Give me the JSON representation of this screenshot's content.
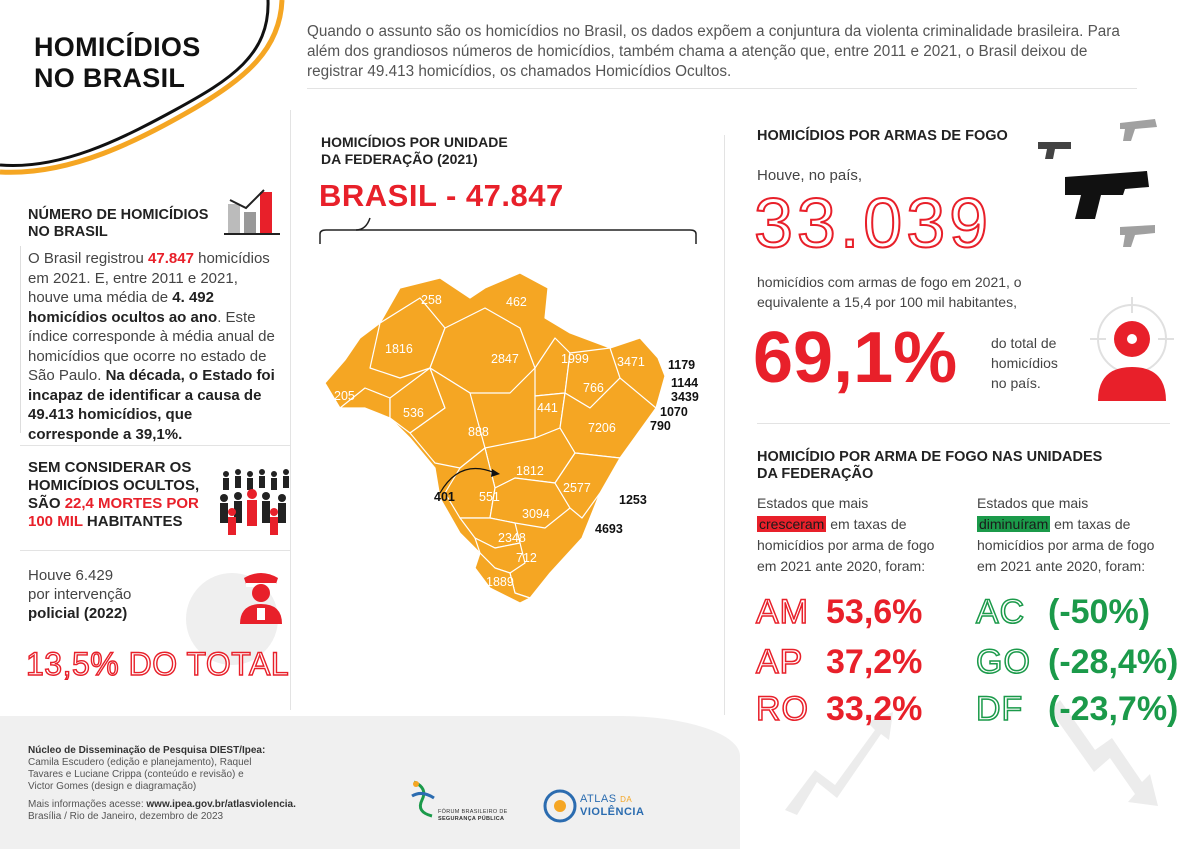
{
  "title": [
    "HOMICÍDIOS",
    "NO BRASIL"
  ],
  "intro": "Quando o assunto são os homicídios no Brasil, os dados expõem a conjuntura da violenta criminalidade brasileira. Para além dos grandiosos números de homicídios, também chama a atenção que, entre 2011 e 2021, o Brasil deixou de registrar 49.413 homicídios, os chamados Homicídios Ocultos.",
  "left": {
    "numero_heading": [
      "NÚMERO DE HOMICÍDIOS",
      "NO BRASIL"
    ],
    "numero_text": {
      "p1": "O Brasil registrou ",
      "v1": "47.847",
      "p2": " homicídios em 2021. E, entre 2011 e 2021, houve uma média de ",
      "v2": "4. 492",
      "v3": "homicídios ocultos ao ano",
      "p3": ". Este índice corresponde à média anual de homicídios que ocorre no estado de São Paulo. ",
      "v4": "Na década, o Estado foi incapaz de identificar a causa de 49.413 homicídios, que corresponde a 39,1%."
    },
    "sem_considerar": {
      "l1": "SEM CONSIDERAR OS",
      "l2": "HOMICÍDIOS OCULTOS,",
      "l3a": "SÃO ",
      "l3b": "22,4 MORTES POR",
      "l4a": "100 MIL",
      "l4b": " HABITANTES"
    },
    "intervencao": {
      "l1": "Houve 6.429",
      "l2": "por intervenção",
      "l3": "policial (2022)"
    },
    "total": "13,5% DO TOTAL"
  },
  "map": {
    "heading": [
      "HOMICÍDIOS POR UNIDADE",
      "DA FEDERAÇÃO (2021)"
    ],
    "brasil": "BRASIL - 47.847",
    "labels_in": [
      "258",
      "462",
      "1816",
      "2847",
      "1999",
      "3471",
      "766",
      "205",
      "536",
      "441",
      "888",
      "7206",
      "1812",
      "551",
      "2577",
      "3094",
      "2348",
      "712",
      "1889"
    ],
    "labels_out": [
      "1179",
      "1144",
      "3439",
      "1070",
      "790",
      "401",
      "1253",
      "4693"
    ]
  },
  "firearms": {
    "heading": "HOMICÍDIOS POR ARMAS DE FOGO",
    "houve": "Houve, no país,",
    "big": "33.039",
    "desc": [
      "homicídios com armas de fogo em 2021, o",
      "equivalente a 15,4 por 100 mil habitantes,"
    ],
    "percent": "69,1%",
    "pct_desc": [
      "do total de",
      "homicídios",
      "no país."
    ]
  },
  "uf": {
    "heading": [
      "HOMICÍDIO POR ARMA DE FOGO NAS UNIDADES",
      "DA FEDERAÇÃO"
    ],
    "inc_text": {
      "l1": "Estados que mais",
      "hl": "cresceram",
      "l2": " em taxas de",
      "l3": "homicídios por arma de fogo",
      "l4": "em 2021 ante 2020, foram:"
    },
    "dec_text": {
      "l1": "Estados que mais",
      "hl": "diminuíram",
      "l2": " em taxas de",
      "l3": "homicídios por arma de fogo",
      "l4": "em 2021 ante 2020, foram:"
    },
    "increased": [
      {
        "uf": "AM",
        "val": "53,6%"
      },
      {
        "uf": "AP",
        "val": "37,2%"
      },
      {
        "uf": "RO",
        "val": "33,2%"
      }
    ],
    "decreased": [
      {
        "uf": "AC",
        "val": "(-50%)"
      },
      {
        "uf": "GO",
        "val": "(-28,4%)"
      },
      {
        "uf": "DF",
        "val": "(-23,7%)"
      }
    ]
  },
  "footer": {
    "credits_title": "Núcleo de Disseminação de Pesquisa DIEST/Ipea:",
    "credits": [
      "Camila Escudero (edição e planejamento), Raquel",
      "Tavares e Luciane Crippa (conteúdo e revisão) e",
      "Victor Gomes (design e diagramação)"
    ],
    "more_prefix": "Mais informações acesse: ",
    "more_url": "www.ipea.gov.br/atlasviolencia.",
    "place_date": "Brasília / Rio de Janeiro, dezembro de 2023",
    "fbsp": [
      "FÓRUM BRASILEIRO DE",
      "SEGURANÇA PÚBLICA"
    ],
    "atlas": [
      "ATLAS",
      "DA",
      "VIOLÊNCIA"
    ]
  },
  "colors": {
    "accent_red": "#e8202a",
    "accent_green": "#1b9a4a",
    "map_orange": "#f5a623",
    "wave_orange": "#f5a623"
  }
}
